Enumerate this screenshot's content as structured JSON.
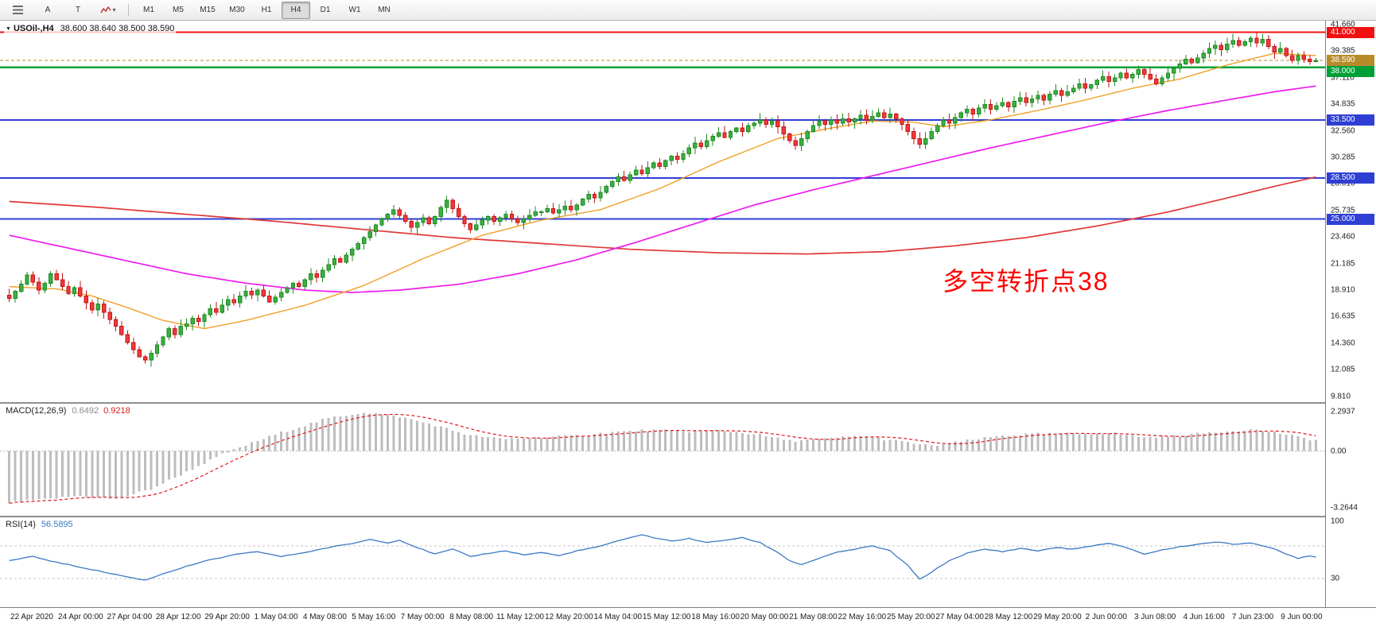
{
  "toolbar": {
    "tool_a": "A",
    "tool_t": "T",
    "timeframes": [
      "M1",
      "M5",
      "M15",
      "M30",
      "H1",
      "H4",
      "D1",
      "W1",
      "MN"
    ],
    "active_timeframe": "H4"
  },
  "chart": {
    "symbol_period": "USOil-,H4",
    "ohlc_text": "38.600 38.640 38.500 38.590",
    "ohlc": {
      "open": 38.6,
      "high": 38.64,
      "low": 38.5,
      "close": 38.59
    },
    "annotation": {
      "text": "多空转折点38",
      "color": "#ff0000"
    }
  },
  "indicators": {
    "macd": {
      "name": "MACD(12,26,9)",
      "main": "0.6492",
      "signal": "0.9218",
      "axis": [
        "2.2937",
        "0.00",
        "-3.2644"
      ]
    },
    "rsi": {
      "name": "RSI(14)",
      "value": "56.5895",
      "axis": [
        "100",
        "30"
      ],
      "levels": [
        70,
        30
      ]
    }
  },
  "chart_data": {
    "type": "candlestick",
    "symbol": "USOil-",
    "timeframe": "H4",
    "current_price": 38.59,
    "candle_up_stroke": "#1e8a22",
    "candle_up_fill": "#3cb043",
    "candle_down_stroke": "#c41414",
    "candle_down_fill": "#ef3b3b",
    "price_axis_labels": [
      "41.660",
      "39.385",
      "37.110",
      "34.835",
      "32.560",
      "30.285",
      "28.010",
      "25.735",
      "23.460",
      "21.185",
      "18.910",
      "16.635",
      "14.360",
      "12.085",
      "9.810"
    ],
    "hlines": [
      {
        "value": 41.0,
        "color": "#f01010",
        "width": 2
      },
      {
        "value": 38.0,
        "color": "#00a038",
        "width": 2.5
      },
      {
        "value": 33.5,
        "color": "#2e3fd4",
        "width": 2
      },
      {
        "value": 28.5,
        "color": "#2e3fd4",
        "width": 2
      },
      {
        "value": 25.0,
        "color": "#2e3fd4",
        "width": 2
      }
    ],
    "price_tags": [
      {
        "label": "41.000",
        "value": 41.0,
        "bg": "#f01010"
      },
      {
        "label": "38.590",
        "value": 38.59,
        "bg": "#b88b2a"
      },
      {
        "label": "38.000",
        "value": 38.0,
        "bg": "#00a038"
      },
      {
        "label": "33.500",
        "value": 33.5,
        "bg": "#2e3fd4"
      },
      {
        "label": "28.500",
        "value": 28.5,
        "bg": "#2e3fd4"
      },
      {
        "label": "25.000",
        "value": 25.0,
        "bg": "#2e3fd4"
      }
    ],
    "closes": [
      18.2,
      18.8,
      19.4,
      20.2,
      19.6,
      18.9,
      19.5,
      20.3,
      19.8,
      19.2,
      18.6,
      19.1,
      18.4,
      17.8,
      17.2,
      17.7,
      17.0,
      16.4,
      15.8,
      15.1,
      14.4,
      13.8,
      13.2,
      12.9,
      13.5,
      14.2,
      14.9,
      15.6,
      15.1,
      15.8,
      16.0,
      16.5,
      16.2,
      16.8,
      17.3,
      17.0,
      17.6,
      18.1,
      17.8,
      18.4,
      18.8,
      18.5,
      18.9,
      18.4,
      17.9,
      18.3,
      18.7,
      19.1,
      19.5,
      19.2,
      19.8,
      20.3,
      20.0,
      20.6,
      21.1,
      21.6,
      21.3,
      21.9,
      22.4,
      22.9,
      23.4,
      23.9,
      24.5,
      25.0,
      25.4,
      25.8,
      25.3,
      24.8,
      24.3,
      24.7,
      25.1,
      24.6,
      25.2,
      26.0,
      26.6,
      25.9,
      25.2,
      24.6,
      24.1,
      24.5,
      24.9,
      25.2,
      24.8,
      25.1,
      25.4,
      25.0,
      24.7,
      25.0,
      25.3,
      25.6,
      25.6,
      25.9,
      25.5,
      25.8,
      26.1,
      25.8,
      26.2,
      26.7,
      27.1,
      26.8,
      27.3,
      27.8,
      28.2,
      28.6,
      28.3,
      28.8,
      29.2,
      28.9,
      29.4,
      29.8,
      29.5,
      30.0,
      30.4,
      30.1,
      30.6,
      31.1,
      31.5,
      31.2,
      31.7,
      32.1,
      32.4,
      32.0,
      32.5,
      32.8,
      32.5,
      33.0,
      33.2,
      33.5,
      33.1,
      33.4,
      32.9,
      32.3,
      31.7,
      31.3,
      31.9,
      32.5,
      33.0,
      33.4,
      33.1,
      33.5,
      33.2,
      33.6,
      33.3,
      33.6,
      33.9,
      33.5,
      33.8,
      34.1,
      33.7,
      34.0,
      33.6,
      33.1,
      32.5,
      31.9,
      31.4,
      31.9,
      32.5,
      33.0,
      33.5,
      33.2,
      33.7,
      34.1,
      34.4,
      34.0,
      34.5,
      34.8,
      34.4,
      34.7,
      35.0,
      34.6,
      35.1,
      35.4,
      35.0,
      35.3,
      35.6,
      35.2,
      35.7,
      36.0,
      35.6,
      35.9,
      36.2,
      36.6,
      36.2,
      36.5,
      36.9,
      37.2,
      36.8,
      37.1,
      37.5,
      37.1,
      37.4,
      37.8,
      37.4,
      37.0,
      36.6,
      37.1,
      37.5,
      37.9,
      38.3,
      38.7,
      38.4,
      38.8,
      39.2,
      39.6,
      39.9,
      39.5,
      40.0,
      40.3,
      39.9,
      40.2,
      40.5,
      40.1,
      40.4,
      39.8,
      39.3,
      39.6,
      39.0,
      38.6,
      39.0,
      38.7,
      38.5,
      38.59
    ],
    "moving_averages": [
      {
        "name": "ma-slow",
        "color": "#e03838",
        "width": 1.7,
        "anchors": [
          [
            0,
            26.5
          ],
          [
            15,
            26.0
          ],
          [
            30,
            25.4
          ],
          [
            45,
            24.8
          ],
          [
            60,
            24.1
          ],
          [
            75,
            23.4
          ],
          [
            90,
            22.9
          ],
          [
            105,
            22.4
          ],
          [
            120,
            22.1
          ],
          [
            135,
            22.0
          ],
          [
            148,
            22.2
          ],
          [
            160,
            22.7
          ],
          [
            172,
            23.4
          ],
          [
            184,
            24.4
          ],
          [
            196,
            25.6
          ],
          [
            206,
            26.8
          ],
          [
            214,
            27.8
          ],
          [
            221,
            28.6
          ]
        ]
      },
      {
        "name": "ma-mid",
        "color": "#ee1cee",
        "width": 1.7,
        "anchors": [
          [
            0,
            23.6
          ],
          [
            10,
            22.5
          ],
          [
            20,
            21.4
          ],
          [
            30,
            20.3
          ],
          [
            40,
            19.5
          ],
          [
            50,
            18.9
          ],
          [
            58,
            18.7
          ],
          [
            66,
            18.9
          ],
          [
            76,
            19.4
          ],
          [
            86,
            20.3
          ],
          [
            96,
            21.5
          ],
          [
            106,
            23.0
          ],
          [
            116,
            24.6
          ],
          [
            126,
            26.2
          ],
          [
            136,
            27.5
          ],
          [
            146,
            28.7
          ],
          [
            156,
            29.9
          ],
          [
            166,
            31.1
          ],
          [
            176,
            32.2
          ],
          [
            186,
            33.3
          ],
          [
            196,
            34.3
          ],
          [
            206,
            35.2
          ],
          [
            214,
            35.9
          ],
          [
            221,
            36.4
          ]
        ]
      },
      {
        "name": "ma-fast",
        "color": "#f0a028",
        "width": 1.4,
        "anchors": [
          [
            0,
            19.2
          ],
          [
            8,
            19.0
          ],
          [
            14,
            18.4
          ],
          [
            20,
            17.4
          ],
          [
            26,
            16.3
          ],
          [
            33,
            15.6
          ],
          [
            40,
            16.3
          ],
          [
            50,
            17.6
          ],
          [
            60,
            19.3
          ],
          [
            70,
            21.6
          ],
          [
            80,
            23.6
          ],
          [
            90,
            24.9
          ],
          [
            100,
            25.8
          ],
          [
            110,
            27.6
          ],
          [
            120,
            29.9
          ],
          [
            130,
            31.9
          ],
          [
            138,
            32.7
          ],
          [
            146,
            33.4
          ],
          [
            153,
            33.3
          ],
          [
            158,
            32.9
          ],
          [
            166,
            33.5
          ],
          [
            174,
            34.3
          ],
          [
            182,
            35.2
          ],
          [
            190,
            36.2
          ],
          [
            198,
            37.0
          ],
          [
            206,
            38.2
          ],
          [
            214,
            39.2
          ],
          [
            221,
            39.0
          ]
        ]
      }
    ],
    "macd": {
      "hist_color": "#bdbdbd",
      "signal_color": "#e01818",
      "range": [
        -3.2644,
        2.2937
      ],
      "anchors": [
        [
          0,
          -3.0
        ],
        [
          6,
          -2.8
        ],
        [
          12,
          -2.6
        ],
        [
          18,
          -2.8
        ],
        [
          24,
          -2.2
        ],
        [
          30,
          -1.2
        ],
        [
          36,
          -0.2
        ],
        [
          42,
          0.6
        ],
        [
          48,
          1.3
        ],
        [
          54,
          1.9
        ],
        [
          60,
          2.25
        ],
        [
          66,
          2.0
        ],
        [
          72,
          1.5
        ],
        [
          78,
          0.9
        ],
        [
          84,
          0.7
        ],
        [
          90,
          0.8
        ],
        [
          96,
          0.9
        ],
        [
          102,
          1.1
        ],
        [
          108,
          1.2
        ],
        [
          114,
          1.15
        ],
        [
          120,
          1.2
        ],
        [
          126,
          1.0
        ],
        [
          132,
          0.6
        ],
        [
          138,
          0.7
        ],
        [
          144,
          0.9
        ],
        [
          150,
          0.6
        ],
        [
          156,
          0.3
        ],
        [
          162,
          0.6
        ],
        [
          168,
          0.9
        ],
        [
          174,
          1.0
        ],
        [
          180,
          1.0
        ],
        [
          186,
          1.05
        ],
        [
          192,
          0.8
        ],
        [
          198,
          0.9
        ],
        [
          204,
          1.1
        ],
        [
          210,
          1.25
        ],
        [
          214,
          1.1
        ],
        [
          218,
          0.8
        ],
        [
          221,
          0.65
        ]
      ]
    },
    "rsi": {
      "color": "#3b78c3",
      "anchors": [
        [
          0,
          52
        ],
        [
          4,
          57
        ],
        [
          8,
          50
        ],
        [
          12,
          44
        ],
        [
          16,
          38
        ],
        [
          20,
          32
        ],
        [
          23,
          28
        ],
        [
          26,
          36
        ],
        [
          30,
          45
        ],
        [
          34,
          53
        ],
        [
          38,
          59
        ],
        [
          42,
          63
        ],
        [
          46,
          57
        ],
        [
          50,
          62
        ],
        [
          54,
          68
        ],
        [
          58,
          73
        ],
        [
          61,
          78
        ],
        [
          64,
          74
        ],
        [
          66,
          77
        ],
        [
          69,
          68
        ],
        [
          72,
          60
        ],
        [
          75,
          66
        ],
        [
          78,
          57
        ],
        [
          81,
          61
        ],
        [
          84,
          64
        ],
        [
          87,
          59
        ],
        [
          90,
          62
        ],
        [
          93,
          58
        ],
        [
          96,
          64
        ],
        [
          99,
          68
        ],
        [
          102,
          74
        ],
        [
          105,
          80
        ],
        [
          107,
          84
        ],
        [
          109,
          80
        ],
        [
          112,
          76
        ],
        [
          115,
          79
        ],
        [
          118,
          74
        ],
        [
          121,
          77
        ],
        [
          124,
          80
        ],
        [
          127,
          74
        ],
        [
          130,
          62
        ],
        [
          132,
          52
        ],
        [
          134,
          47
        ],
        [
          137,
          55
        ],
        [
          140,
          62
        ],
        [
          143,
          66
        ],
        [
          146,
          70
        ],
        [
          149,
          64
        ],
        [
          152,
          46
        ],
        [
          154,
          29
        ],
        [
          156,
          38
        ],
        [
          159,
          52
        ],
        [
          162,
          61
        ],
        [
          165,
          66
        ],
        [
          168,
          63
        ],
        [
          171,
          67
        ],
        [
          174,
          64
        ],
        [
          177,
          68
        ],
        [
          180,
          66
        ],
        [
          183,
          70
        ],
        [
          186,
          73
        ],
        [
          189,
          68
        ],
        [
          192,
          60
        ],
        [
          195,
          65
        ],
        [
          198,
          69
        ],
        [
          201,
          72
        ],
        [
          204,
          75
        ],
        [
          207,
          72
        ],
        [
          210,
          74
        ],
        [
          212,
          70
        ],
        [
          214,
          66
        ],
        [
          216,
          60
        ],
        [
          218,
          55
        ],
        [
          220,
          58
        ],
        [
          221,
          56.6
        ]
      ]
    },
    "time_labels": [
      "22 Apr 2020",
      "24 Apr 00:00",
      "27 Apr 04:00",
      "28 Apr 12:00",
      "29 Apr 20:00",
      "1 May 04:00",
      "4 May 08:00",
      "5 May 16:00",
      "7 May 00:00",
      "8 May 08:00",
      "11 May 12:00",
      "12 May 20:00",
      "14 May 04:00",
      "15 May 12:00",
      "18 May 16:00",
      "20 May 00:00",
      "21 May 08:00",
      "22 May 16:00",
      "25 May 20:00",
      "27 May 04:00",
      "28 May 12:00",
      "29 May 20:00",
      "2 Jun 00:00",
      "3 Jun 08:00",
      "4 Jun 16:00",
      "7 Jun 23:00",
      "9 Jun 00:00"
    ]
  }
}
